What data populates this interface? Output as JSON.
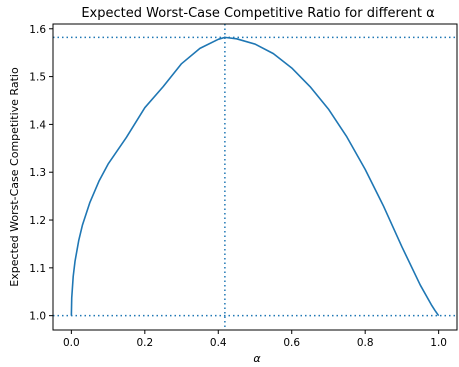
{
  "chart_data": {
    "type": "line",
    "title": "Expected Worst-Case Competitive Ratio for different α",
    "xlabel": "α",
    "ylabel": "Expected Worst-Case Competitive Ratio",
    "xlim": [
      -0.05,
      1.05
    ],
    "ylim": [
      0.97,
      1.61
    ],
    "x_ticks": [
      0.0,
      0.2,
      0.4,
      0.6,
      0.8,
      1.0
    ],
    "x_tick_labels": [
      "0.0",
      "0.2",
      "0.4",
      "0.6",
      "0.8",
      "1.0"
    ],
    "y_ticks": [
      1.0,
      1.1,
      1.2,
      1.3,
      1.4,
      1.5,
      1.6
    ],
    "y_tick_labels": [
      "1.0",
      "1.1",
      "1.2",
      "1.3",
      "1.4",
      "1.5",
      "1.6"
    ],
    "grid": false,
    "series": [
      {
        "color": "#1f77b4",
        "x": [
          0.0,
          0.001,
          0.005,
          0.01,
          0.02,
          0.03,
          0.05,
          0.075,
          0.1,
          0.15,
          0.2,
          0.25,
          0.3,
          0.35,
          0.4,
          0.418,
          0.45,
          0.5,
          0.55,
          0.6,
          0.65,
          0.7,
          0.75,
          0.8,
          0.85,
          0.9,
          0.95,
          0.98,
          0.99,
          1.0
        ],
        "y": [
          1.0,
          1.037,
          1.082,
          1.114,
          1.157,
          1.189,
          1.236,
          1.281,
          1.317,
          1.373,
          1.435,
          1.479,
          1.527,
          1.559,
          1.578,
          1.582,
          1.579,
          1.568,
          1.548,
          1.518,
          1.479,
          1.432,
          1.374,
          1.306,
          1.229,
          1.144,
          1.064,
          1.023,
          1.011,
          1.0
        ]
      }
    ],
    "reference_lines": {
      "color": "#1f77b4",
      "style": "dotted",
      "horizontal": [
        1.582,
        1.0
      ],
      "vertical": [
        0.418
      ]
    }
  }
}
